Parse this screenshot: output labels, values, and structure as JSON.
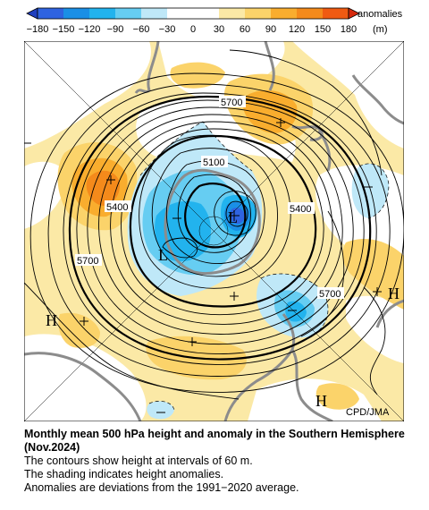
{
  "legend": {
    "title": "anomalies",
    "unit": "(m)",
    "ticks": [
      "−180",
      "−150",
      "−120",
      "−90",
      "−60",
      "−30",
      "0",
      "30",
      "60",
      "90",
      "120",
      "150",
      "180"
    ],
    "colors": [
      "#1f3fbf",
      "#2f63e0",
      "#1a8fe6",
      "#22b3ee",
      "#66cdf2",
      "#bfe8f8",
      "#ffffff",
      "#fbe9a6",
      "#fbd36a",
      "#f9ad2e",
      "#f48a1b",
      "#ef5a12",
      "#d52a0d"
    ]
  },
  "map": {
    "contour_labels": [
      "5700",
      "5100",
      "5400",
      "5400",
      "5700",
      "5700"
    ],
    "pressure_labels": [
      "L",
      "L",
      "H",
      "H",
      "H"
    ],
    "credit": "CPD/JMA"
  },
  "caption": {
    "title": "Monthly mean 500 hPa height and anomaly in the Southern Hemisphere (Nov.2024)",
    "line1": "The contours show height at intervals of 60 m.",
    "line2": "The shading indicates height anomalies.",
    "line3": "Anomalies are deviations from the 1991−2020 average."
  }
}
